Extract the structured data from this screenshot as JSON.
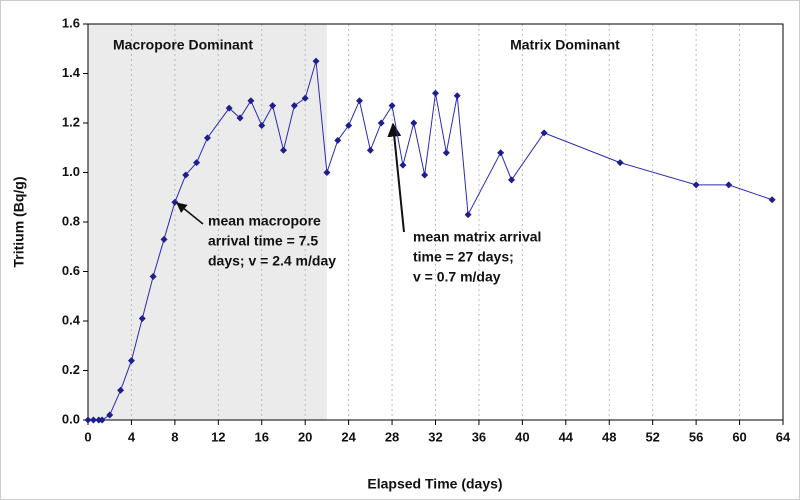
{
  "chart_data": {
    "type": "line",
    "x_label": "Elapsed Time (days)",
    "y_label": "Tritium (Bq/g)",
    "xlim": [
      0,
      64
    ],
    "ylim": [
      0,
      1.6
    ],
    "xticks": [
      0,
      4,
      8,
      12,
      16,
      20,
      24,
      28,
      32,
      36,
      40,
      44,
      48,
      52,
      56,
      60,
      64
    ],
    "yticks": [
      {
        "value": 0,
        "label": "0.0"
      },
      0.2,
      0.4,
      0.6,
      0.8,
      {
        "value": 1,
        "label": "1.0"
      },
      1.2,
      1.4,
      1.6
    ],
    "grid": true,
    "regions": [
      {
        "label": "Macropore Dominant",
        "xlim": [
          0,
          22
        ],
        "color": "#ebebeb"
      },
      {
        "label": "Matrix Dominant",
        "xlim": [
          22,
          64
        ],
        "color": "#ffffff"
      }
    ],
    "series": [
      {
        "color": "#2a2ab5",
        "x": [
          0,
          0.5,
          1,
          1.3,
          2,
          3,
          4,
          5,
          6,
          7,
          8,
          9,
          10,
          11,
          13,
          14,
          15,
          16,
          17,
          18,
          19,
          20,
          21,
          22,
          23,
          24,
          25,
          26,
          27,
          28,
          29,
          30,
          31,
          32,
          33,
          34,
          35,
          38,
          39,
          42,
          49,
          56,
          59,
          63
        ],
        "values": [
          0,
          0,
          0,
          0,
          0.02,
          0.12,
          0.24,
          0.41,
          0.58,
          0.73,
          0.88,
          0.99,
          1.04,
          1.14,
          1.26,
          1.22,
          1.29,
          1.19,
          1.27,
          1.09,
          1.27,
          1.3,
          1.45,
          1.0,
          1.13,
          1.19,
          1.29,
          1.09,
          1.2,
          1.27,
          1.03,
          1.2,
          0.99,
          1.32,
          1.08,
          1.31,
          0.83,
          1.08,
          0.97,
          1.16,
          1.04,
          0.95,
          0.95,
          0.89
        ]
      }
    ],
    "annotations": [
      {
        "lines": [
          "mean macropore",
          "arrival time = 7.5",
          "days; v = 2.4 m/day"
        ]
      },
      {
        "lines": [
          "mean matrix arrival",
          "time = 27 days;",
          "v = 0.7 m/day"
        ]
      }
    ]
  }
}
